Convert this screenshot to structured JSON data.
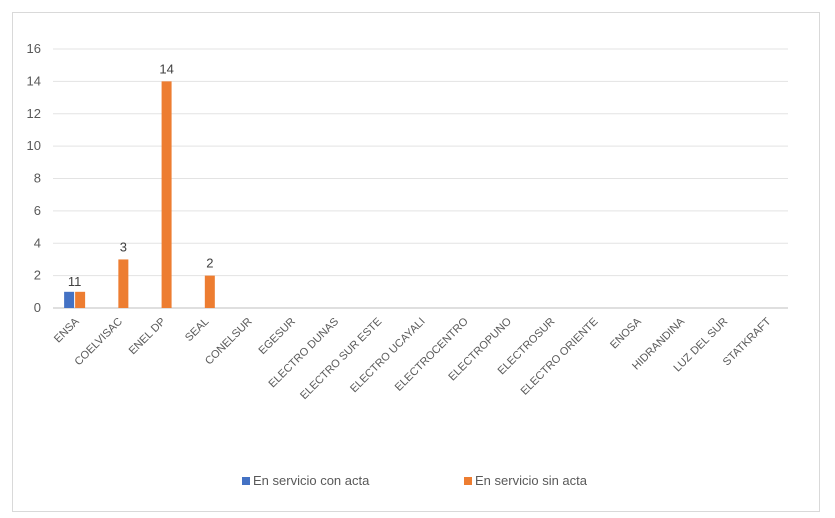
{
  "chart_data": {
    "type": "bar",
    "categories": [
      "ENSA",
      "COELVISAC",
      "ENEL DP",
      "SEAL",
      "CONELSUR",
      "EGESUR",
      "ELECTRO DUNAS",
      "ELECTRO SUR ESTE",
      "ELECTRO UCAYALI",
      "ELECTROCENTRO",
      "ELECTROPUNO",
      "ELECTROSUR",
      "ELECTRO ORIENTE",
      "ENOSA",
      "HIDRANDINA",
      "LUZ DEL SUR",
      "STATKRAFT"
    ],
    "series": [
      {
        "name": "En servicio con acta",
        "color": "#4472c4",
        "values": [
          1,
          0,
          0,
          0,
          0,
          0,
          0,
          0,
          0,
          0,
          0,
          0,
          0,
          0,
          0,
          0,
          0
        ]
      },
      {
        "name": "En servicio sin acta",
        "color": "#ed7d31",
        "values": [
          1,
          3,
          14,
          2,
          0,
          0,
          0,
          0,
          0,
          0,
          0,
          0,
          0,
          0,
          0,
          0,
          0
        ]
      }
    ],
    "ylim": [
      0,
      16
    ],
    "yticks": [
      0,
      2,
      4,
      6,
      8,
      10,
      12,
      14,
      16
    ],
    "grid": true,
    "legend_position": "bottom"
  }
}
